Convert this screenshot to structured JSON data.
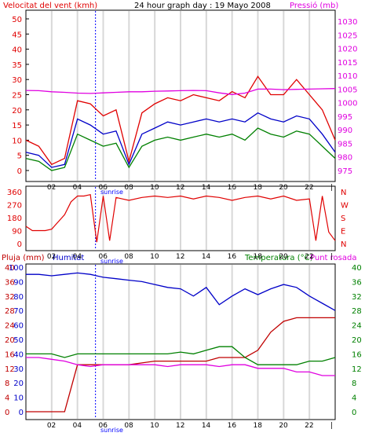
{
  "colors": {
    "red": "#e00000",
    "blue": "#0000c8",
    "green": "#008000",
    "magenta": "#e000e0",
    "darkred": "#c00000",
    "axis": "#000000",
    "grid": "#d8d8d8",
    "sunrise": "#0000ff"
  },
  "time_axis": {
    "ticks": [
      "02",
      "04",
      "06",
      "08",
      "10",
      "12",
      "14",
      "16",
      "18",
      "20",
      "22",
      "|"
    ],
    "sunrise_label": "sunrise"
  },
  "chart_data": [
    {
      "type": "line",
      "title": "24 hour graph day : 19 Mayo 2008",
      "left_label": "Velocitat del vent (kmh)",
      "right_label": "Pressió (mb)",
      "y_left_ticks": [
        "50",
        "45",
        "40",
        "35",
        "30",
        "25",
        "20",
        "15",
        "10",
        "5",
        "0"
      ],
      "y_right_ticks": [
        "1030",
        "1025",
        "1020",
        "1015",
        "1010",
        "1005",
        "1000",
        "995",
        "990",
        "985",
        "980",
        "975"
      ],
      "ylim_left": [
        0,
        50
      ],
      "ylim_right": [
        975,
        1030
      ],
      "x": [
        0,
        1,
        2,
        3,
        4,
        5,
        6,
        7,
        8,
        9,
        10,
        11,
        12,
        13,
        14,
        15,
        16,
        17,
        18,
        19,
        20,
        21,
        22,
        23,
        24
      ],
      "series": [
        {
          "key": "gust",
          "color": "#e00000",
          "axis": "left",
          "values": [
            10,
            8,
            2,
            4,
            23,
            22,
            18,
            20,
            3,
            19,
            22,
            24,
            23,
            25,
            24,
            23,
            26,
            24,
            31,
            25,
            25,
            30,
            25,
            20,
            10
          ]
        },
        {
          "key": "avg",
          "color": "#0000c8",
          "axis": "left",
          "values": [
            6,
            5,
            1,
            2,
            17,
            15,
            12,
            13,
            2,
            12,
            14,
            16,
            15,
            16,
            17,
            16,
            17,
            16,
            19,
            17,
            16,
            18,
            17,
            12,
            6
          ]
        },
        {
          "key": "low",
          "color": "#008000",
          "axis": "left",
          "values": [
            4,
            3,
            0,
            1,
            12,
            10,
            8,
            9,
            1,
            8,
            10,
            11,
            10,
            11,
            12,
            11,
            12,
            10,
            14,
            12,
            11,
            13,
            12,
            8,
            4
          ]
        },
        {
          "key": "pressure",
          "color": "#e000e0",
          "axis": "right",
          "values": [
            1004.5,
            1004.4,
            1004,
            1003.8,
            1003.5,
            1003.4,
            1003.6,
            1003.8,
            1004,
            1004,
            1004.2,
            1004.3,
            1004.4,
            1004.5,
            1004.4,
            1003.6,
            1003,
            1003.5,
            1005,
            1005,
            1004.8,
            1004.9,
            1005,
            1005.1,
            1005.2
          ]
        }
      ]
    },
    {
      "type": "line",
      "left_ticks": [
        "360",
        "270",
        "180",
        "90",
        "0"
      ],
      "right_ticks": [
        "N",
        "W",
        "S",
        "E",
        "N"
      ],
      "ylim": [
        0,
        360
      ],
      "x": [
        0,
        0.5,
        1,
        1.5,
        2,
        2.5,
        3,
        3.5,
        4,
        4.5,
        5,
        5.5,
        6,
        6.5,
        7,
        7.5,
        8,
        9,
        10,
        11,
        12,
        13,
        14,
        15,
        16,
        17,
        18,
        19,
        20,
        21,
        22,
        22.5,
        23,
        23.5,
        24
      ],
      "series": [
        {
          "key": "direction",
          "color": "#e00000",
          "values": [
            120,
            90,
            90,
            90,
            100,
            150,
            200,
            290,
            330,
            330,
            340,
            10,
            330,
            20,
            320,
            310,
            300,
            320,
            330,
            320,
            330,
            310,
            330,
            320,
            300,
            320,
            330,
            310,
            330,
            300,
            310,
            20,
            330,
            80,
            20
          ]
        }
      ]
    },
    {
      "type": "line",
      "left_label": "Pluja (mm)",
      "mid_label": "Humitat",
      "right_label": "Temperatura (°C)",
      "right_label2": "Punt rosada",
      "y_rain_ticks": [
        "40",
        "36",
        "32",
        "28",
        "24",
        "20",
        "16",
        "12",
        "8",
        "4",
        "0"
      ],
      "y_hum_ticks": [
        "100",
        "90",
        "80",
        "70",
        "60",
        "50",
        "40",
        "30",
        "20",
        "10",
        "0"
      ],
      "y_temp_ticks": [
        "40",
        "36",
        "32",
        "28",
        "24",
        "20",
        "16",
        "12",
        "8",
        "4",
        "0"
      ],
      "ylim": [
        0,
        40
      ],
      "x": [
        0,
        1,
        2,
        3,
        4,
        5,
        6,
        7,
        8,
        9,
        10,
        11,
        12,
        13,
        14,
        15,
        16,
        17,
        18,
        19,
        20,
        21,
        22,
        23,
        24
      ],
      "series": [
        {
          "key": "rain",
          "color": "#c00000",
          "scale": "rain",
          "values": [
            0,
            0,
            0,
            0,
            13,
            13,
            13,
            13,
            13,
            13.5,
            14,
            14,
            14,
            14,
            14,
            15,
            15,
            15,
            17,
            22,
            25,
            26,
            26,
            26,
            26
          ]
        },
        {
          "key": "humidity",
          "color": "#0000c8",
          "scale": "humidity",
          "values": [
            95,
            95,
            94,
            95,
            96,
            95,
            93,
            92,
            91,
            90,
            88,
            86,
            85,
            80,
            86,
            74,
            80,
            85,
            81,
            85,
            88,
            86,
            80,
            75,
            70
          ]
        },
        {
          "key": "temperature",
          "color": "#008000",
          "scale": "temp",
          "values": [
            16,
            16,
            16,
            15,
            16,
            16,
            16,
            16,
            16,
            16,
            16,
            16,
            16.5,
            16,
            17,
            18,
            18,
            15,
            13,
            13,
            13,
            13,
            14,
            14,
            15
          ]
        },
        {
          "key": "dewpoint",
          "color": "#e000e0",
          "scale": "temp",
          "values": [
            15,
            15,
            14.5,
            14,
            13,
            12.5,
            13,
            13,
            13,
            13,
            13,
            12.5,
            13,
            13,
            13,
            12.5,
            13,
            13,
            12,
            12,
            12,
            11,
            11,
            10,
            10
          ]
        }
      ]
    }
  ]
}
